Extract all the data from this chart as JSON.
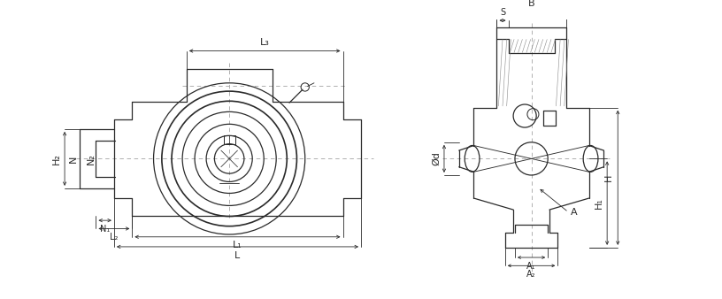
{
  "bg_color": "#ffffff",
  "line_color": "#2a2a2a",
  "dim_color": "#2a2a2a",
  "hatch_color": "#888888",
  "lw": 0.9,
  "dlw": 0.6,
  "fs": 7,
  "fsl": 8,
  "labels": {
    "L3": "L₃",
    "B": "B",
    "S": "S",
    "L2": "L₂",
    "N1": "N₁",
    "L1": "L₁",
    "L": "L",
    "N": "N",
    "N2": "N₂",
    "H2": "H₂",
    "H1": "H₁",
    "H": "H",
    "d": "Ød",
    "A": "A",
    "A1": "A₁",
    "A2": "A₂"
  }
}
